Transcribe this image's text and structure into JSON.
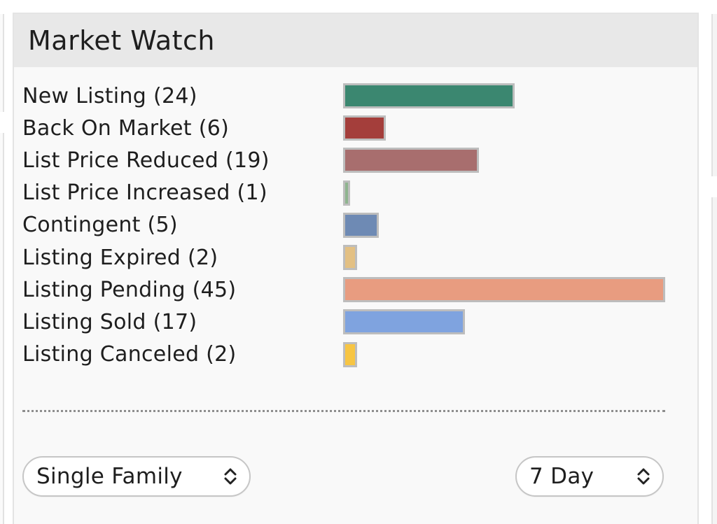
{
  "widget": {
    "title": "Market Watch"
  },
  "colors": {
    "new_listing": "#3b8770",
    "back_on_market": "#a43e3b",
    "list_price_reduced": "#a86e6e",
    "list_price_increased": "#8fb48f",
    "contingent": "#6e8ab4",
    "listing_expired": "#e3c083",
    "listing_pending": "#e89c80",
    "listing_sold": "#7fa3df",
    "listing_canceled": "#f7c543"
  },
  "chart_data": {
    "type": "bar",
    "orientation": "horizontal",
    "categories": [
      "New Listing (24)",
      "Back On Market (6)",
      "List Price Reduced (19)",
      "List Price Increased (1)",
      "Contingent (5)",
      "Listing Expired (2)",
      "Listing Pending (45)",
      "Listing Sold (17)",
      "Listing Canceled (2)"
    ],
    "values": [
      24,
      6,
      19,
      1,
      5,
      2,
      45,
      17,
      2
    ],
    "colors": [
      "#3b8770",
      "#a43e3b",
      "#a86e6e",
      "#8fb48f",
      "#6e8ab4",
      "#e3c083",
      "#e89c80",
      "#7fa3df",
      "#f7c543"
    ],
    "xlim": [
      0,
      45
    ],
    "grid": false,
    "legend": "none"
  },
  "filters": {
    "property_type": {
      "value": "Single Family",
      "icon": "updown-chevron-icon"
    },
    "period": {
      "value": "7 Day",
      "icon": "updown-chevron-icon"
    }
  }
}
